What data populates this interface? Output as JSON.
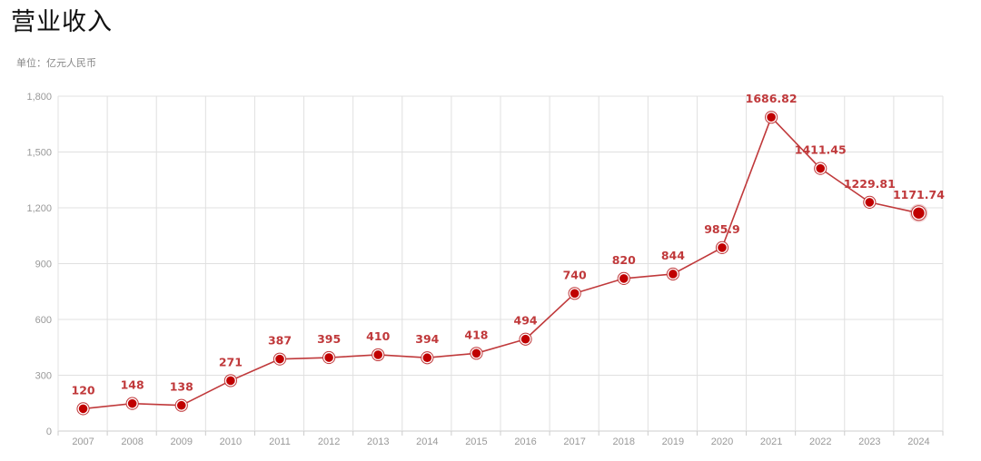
{
  "chart_data": {
    "type": "line",
    "title": "营业收入",
    "subtitle": "单位：亿元人民币",
    "xlabel": "",
    "ylabel": "",
    "categories": [
      "2007",
      "2008",
      "2009",
      "2010",
      "2011",
      "2012",
      "2013",
      "2014",
      "2015",
      "2016",
      "2017",
      "2018",
      "2019",
      "2020",
      "2021",
      "2022",
      "2023",
      "2024"
    ],
    "values": [
      120,
      148,
      138,
      271,
      387,
      395,
      410,
      394,
      418,
      494,
      740,
      820,
      844,
      985.9,
      1686.82,
      1411.45,
      1229.81,
      1171.74
    ],
    "data_labels": [
      "120",
      "148",
      "138",
      "271",
      "387",
      "395",
      "410",
      "394",
      "418",
      "494",
      "740",
      "820",
      "844",
      "985.9",
      "1686.82",
      "1411.45",
      "1229.81",
      "1171.74"
    ],
    "ylim": [
      0,
      1800
    ],
    "yticks": [
      0,
      300,
      600,
      900,
      1200,
      1500,
      1800
    ],
    "ytick_labels": [
      "0",
      "300",
      "600",
      "900",
      "1,200",
      "1,500",
      "1,800"
    ],
    "grid": true,
    "highlighted_point": "2024",
    "colors": {
      "line": "#c0393b",
      "marker_fill": "#c00000",
      "label": "#c0393b",
      "grid": "#e0e0e0",
      "axis": "#cccccc"
    }
  }
}
